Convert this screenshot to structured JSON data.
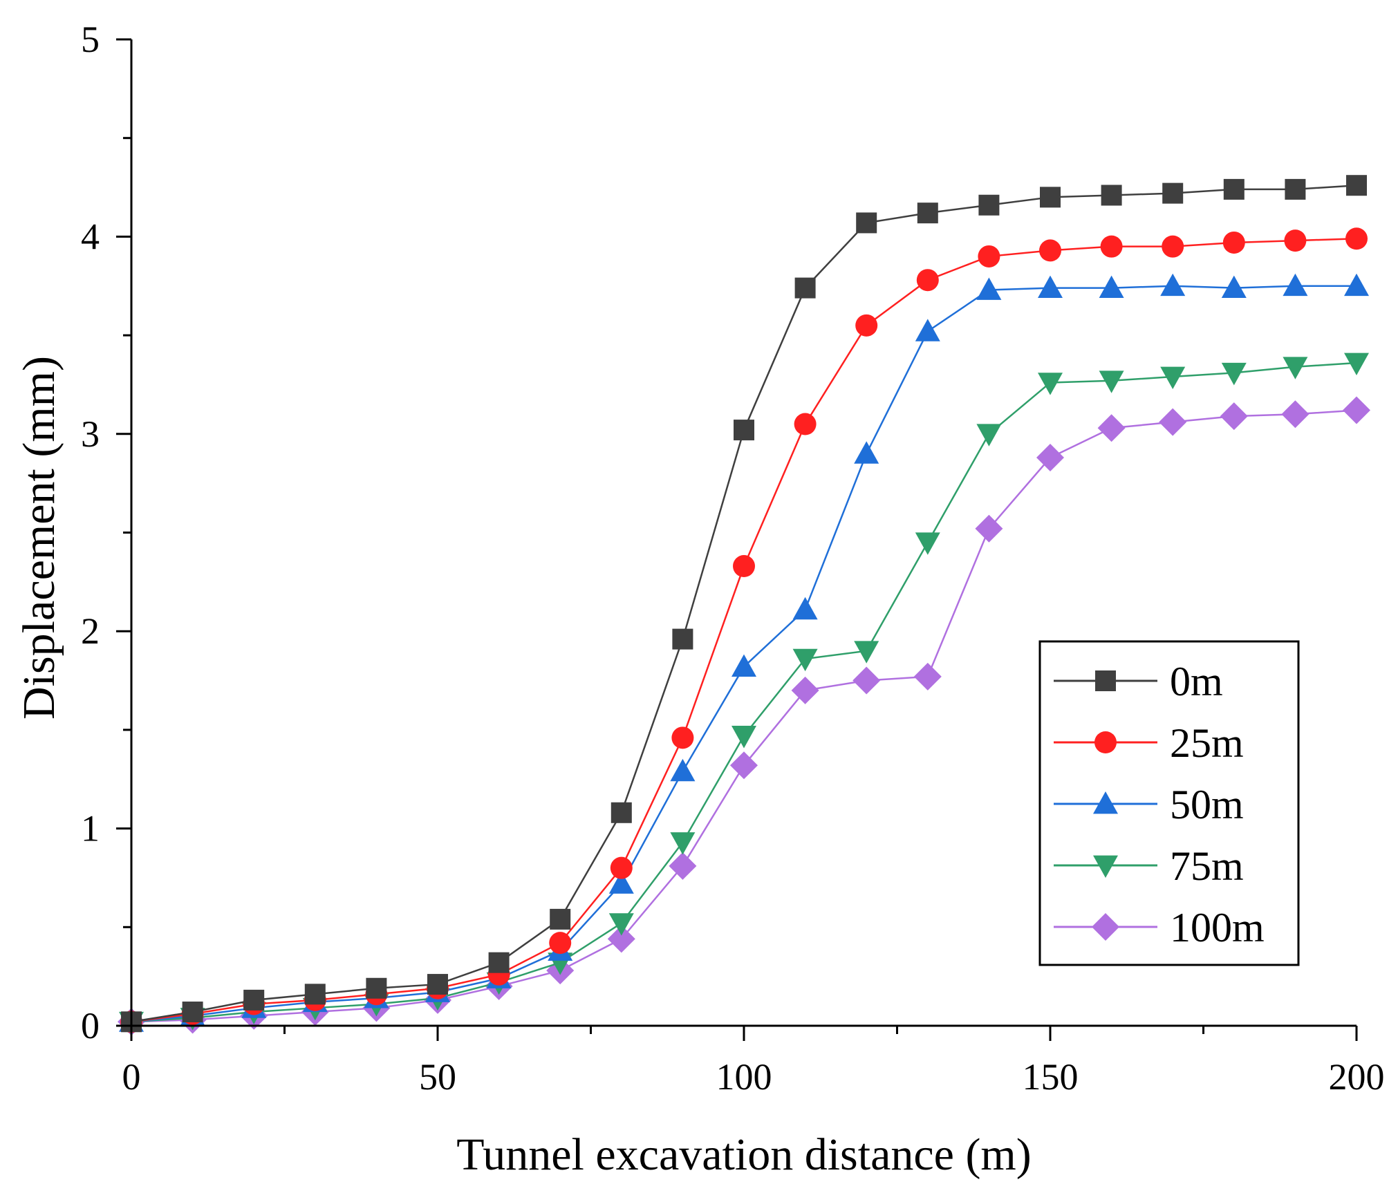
{
  "chart_data": {
    "type": "line",
    "title": "",
    "xlabel": "Tunnel excavation distance (m)",
    "ylabel": "Displacement (mm)",
    "xlim": [
      0,
      200
    ],
    "ylim": [
      0,
      5
    ],
    "xticks": [
      0,
      50,
      100,
      150,
      200
    ],
    "yticks": [
      0,
      1,
      2,
      3,
      4,
      5
    ],
    "x": [
      0,
      10,
      20,
      30,
      40,
      50,
      60,
      70,
      80,
      90,
      100,
      110,
      120,
      130,
      140,
      150,
      160,
      170,
      180,
      190,
      200
    ],
    "legend_position": "lower-right",
    "series": [
      {
        "name": "0m",
        "color": "#3f3f3f",
        "marker": "square",
        "values": [
          0.02,
          0.07,
          0.13,
          0.16,
          0.19,
          0.21,
          0.32,
          0.54,
          1.08,
          1.96,
          3.02,
          3.74,
          4.07,
          4.12,
          4.16,
          4.2,
          4.21,
          4.22,
          4.24,
          4.24,
          4.26
        ]
      },
      {
        "name": "25m",
        "color": "#ff2020",
        "marker": "circle",
        "values": [
          0.02,
          0.06,
          0.11,
          0.13,
          0.16,
          0.19,
          0.26,
          0.42,
          0.8,
          1.46,
          2.33,
          3.05,
          3.55,
          3.78,
          3.9,
          3.93,
          3.95,
          3.95,
          3.97,
          3.98,
          3.99
        ]
      },
      {
        "name": "50m",
        "color": "#1f6fd8",
        "marker": "triangle-up",
        "values": [
          0.02,
          0.05,
          0.09,
          0.12,
          0.14,
          0.17,
          0.24,
          0.38,
          0.72,
          1.29,
          1.82,
          2.11,
          2.9,
          3.52,
          3.73,
          3.74,
          3.74,
          3.75,
          3.74,
          3.75,
          3.75
        ]
      },
      {
        "name": "75m",
        "color": "#2f9f6a",
        "marker": "triangle-down",
        "values": [
          0.02,
          0.04,
          0.07,
          0.09,
          0.11,
          0.14,
          0.22,
          0.32,
          0.52,
          0.93,
          1.47,
          1.86,
          1.9,
          2.45,
          3.0,
          3.26,
          3.27,
          3.29,
          3.31,
          3.34,
          3.36
        ]
      },
      {
        "name": "100m",
        "color": "#b070e0",
        "marker": "diamond",
        "values": [
          0.02,
          0.03,
          0.05,
          0.07,
          0.09,
          0.13,
          0.2,
          0.28,
          0.44,
          0.81,
          1.32,
          1.7,
          1.75,
          1.77,
          2.52,
          2.88,
          3.03,
          3.06,
          3.09,
          3.1,
          3.12
        ]
      }
    ]
  }
}
